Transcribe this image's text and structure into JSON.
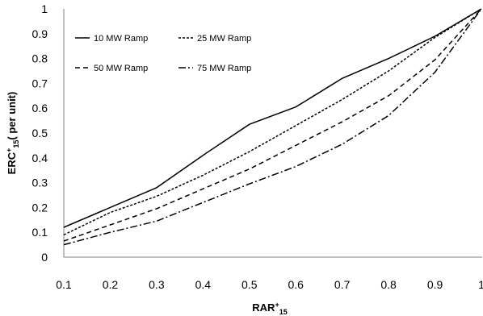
{
  "chart_data": {
    "type": "line",
    "title": "",
    "xlabel": {
      "main": "RAR",
      "sup": "+",
      "sub": "15"
    },
    "ylabel": {
      "main": "ERC",
      "sup": "+",
      "sub": "15",
      "suffix": "( per unit)"
    },
    "xlim": [
      0.1,
      1
    ],
    "ylim": [
      0,
      1
    ],
    "x_ticks": [
      "0.1",
      "0.2",
      "0.3",
      "0.4",
      "0.5",
      "0.6",
      "0.7",
      "0.8",
      "0.9",
      "1"
    ],
    "y_ticks": [
      "0",
      "0.1",
      "0.2",
      "0.3",
      "0.4",
      "0.5",
      "0.6",
      "0.7",
      "0.8",
      "0.9",
      "1"
    ],
    "grid": false,
    "legend_position": "top-left",
    "x": [
      0.1,
      0.2,
      0.3,
      0.4,
      0.5,
      0.6,
      0.7,
      0.8,
      0.9,
      1.0
    ],
    "series": [
      {
        "name": "10 MW Ramp",
        "dash": "solid",
        "values": [
          0.12,
          0.2,
          0.28,
          0.41,
          0.535,
          0.605,
          0.72,
          0.8,
          0.89,
          1.0
        ]
      },
      {
        "name": "25 MW Ramp",
        "dash": "dotted",
        "values": [
          0.09,
          0.18,
          0.245,
          0.33,
          0.425,
          0.53,
          0.635,
          0.75,
          0.885,
          1.0
        ]
      },
      {
        "name": "50 MW Ramp",
        "dash": "dashed",
        "values": [
          0.065,
          0.13,
          0.195,
          0.275,
          0.355,
          0.45,
          0.545,
          0.65,
          0.795,
          1.0
        ]
      },
      {
        "name": "75 MW Ramp",
        "dash": "dashdot",
        "values": [
          0.05,
          0.1,
          0.145,
          0.22,
          0.295,
          0.365,
          0.455,
          0.57,
          0.745,
          1.0
        ]
      }
    ]
  }
}
